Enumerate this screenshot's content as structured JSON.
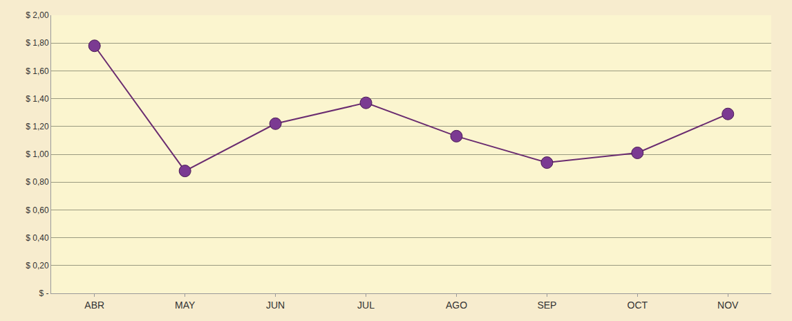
{
  "chart_data": {
    "type": "line",
    "categories": [
      "ABR",
      "MAY",
      "JUN",
      "JUL",
      "AGO",
      "SEP",
      "OCT",
      "NOV"
    ],
    "values": [
      1.78,
      0.88,
      1.22,
      1.37,
      1.13,
      0.94,
      1.01,
      1.29
    ],
    "color": "#6a2c70",
    "marker": "circle",
    "line_style": "solid",
    "ylim": [
      0,
      2
    ],
    "yticks": [
      {
        "value": 0,
        "label": "$ -"
      },
      {
        "value": 0.2,
        "label": "$ 0,20"
      },
      {
        "value": 0.4,
        "label": "$ 0,40"
      },
      {
        "value": 0.6,
        "label": "$ 0,60"
      },
      {
        "value": 0.8,
        "label": "$ 0,80"
      },
      {
        "value": 1.0,
        "label": "$ 1,00"
      },
      {
        "value": 1.2,
        "label": "$ 1,20"
      },
      {
        "value": 1.4,
        "label": "$ 1,40"
      },
      {
        "value": 1.6,
        "label": "$ 1,60"
      },
      {
        "value": 1.8,
        "label": "$ 1,80"
      },
      {
        "value": 2.0,
        "label": "$ 2,00"
      }
    ],
    "grid": true
  }
}
